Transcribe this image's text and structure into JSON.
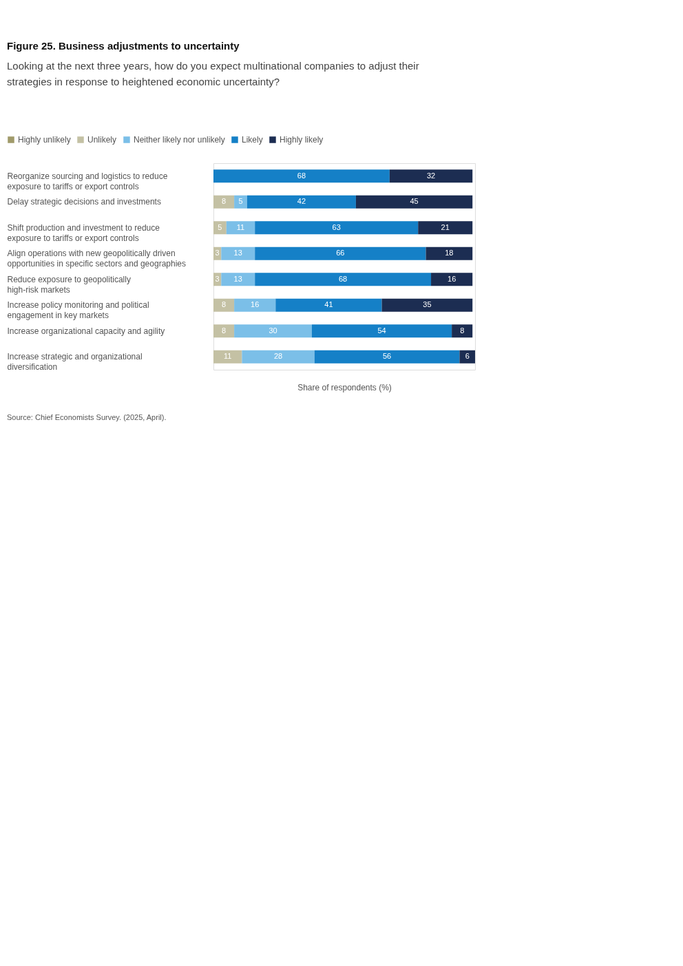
{
  "chart_data": {
    "type": "bar",
    "orientation": "horizontal",
    "stacked": true,
    "title": "Figure 25. Business adjustments to uncertainty",
    "subtitle": "Looking at the next three years, how do you expect multinational companies to adjust their strategies in response to heightened economic uncertainty?",
    "xlabel": "Share of respondents (%)",
    "categories": [
      "Reorganize sourcing and logistics to reduce\nexposure to tariffs or export controls",
      "Delay strategic decisions and investments",
      "Shift production and investment to reduce\nexposure to tariffs or export controls",
      "Align operations with new geopolitically driven\nopportunities in specific sectors and geographies",
      "Reduce exposure to geopolitically\nhigh-risk markets",
      "Increase policy monitoring and political\nengagement in key markets",
      "Increase organizational capacity and agility",
      "Increase strategic and organizational\ndiversification"
    ],
    "series": [
      {
        "name": "Highly unlikely",
        "color": "#a09a6a",
        "values": [
          null,
          null,
          null,
          null,
          null,
          null,
          null,
          null
        ]
      },
      {
        "name": "Unlikely",
        "color": "#c4c1a4",
        "values": [
          null,
          8,
          5,
          3,
          3,
          8,
          8,
          11
        ]
      },
      {
        "name": "Neither likely nor unlikely",
        "color": "#7bbfe8",
        "values": [
          null,
          5,
          11,
          13,
          13,
          16,
          30,
          28
        ]
      },
      {
        "name": "Likely",
        "color": "#1580c7",
        "values": [
          68,
          42,
          63,
          66,
          68,
          41,
          54,
          56
        ]
      },
      {
        "name": "Highly likely",
        "color": "#1c2d52",
        "values": [
          32,
          45,
          21,
          18,
          16,
          35,
          8,
          6
        ]
      }
    ],
    "xlim": [
      0,
      101
    ],
    "tick_labels": "y",
    "data_labels": true,
    "legend": "top left",
    "grid": false,
    "annotations": [
      "Source: Chief Economists Survey. (2025, April)."
    ]
  }
}
